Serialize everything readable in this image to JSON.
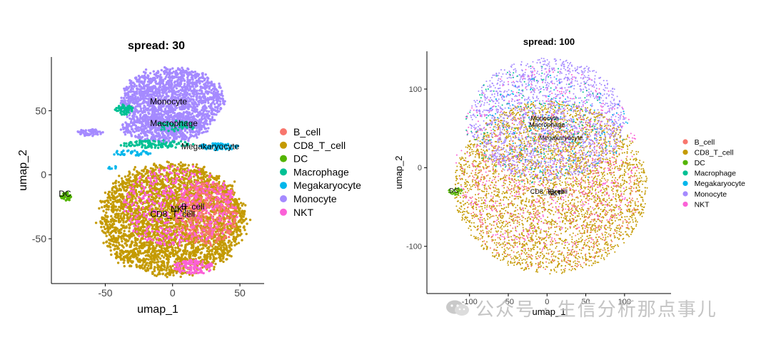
{
  "colors": {
    "B_cell": "#F8766D",
    "CD8_T_cell": "#C49A00",
    "DC": "#53B400",
    "Macrophage": "#00C094",
    "Megakaryocyte": "#00B6EB",
    "Monocyte": "#A58AFF",
    "NKT": "#FB61D7"
  },
  "legend_order": [
    "B_cell",
    "CD8_T_cell",
    "DC",
    "Macrophage",
    "Megakaryocyte",
    "Monocyte",
    "NKT"
  ],
  "watermark": {
    "icon": "wechat-icon",
    "text": "公众号 · 生信分析那点事儿"
  },
  "chart_data": [
    {
      "type": "scatter",
      "title": "spread: 30",
      "xlabel": "umap_1",
      "ylabel": "umap_2",
      "xlim": [
        -90,
        68
      ],
      "ylim": [
        -85,
        92
      ],
      "xticks": [
        -50,
        0,
        50
      ],
      "yticks": [
        -50,
        0,
        50
      ],
      "legend": [
        "B_cell",
        "CD8_T_cell",
        "DC",
        "Macrophage",
        "Megakaryocyte",
        "Monocyte",
        "NKT"
      ],
      "legend_position": "right",
      "grid": false,
      "cluster_labels": [
        {
          "text": "Monocyte",
          "x": -3,
          "y": 55
        },
        {
          "text": "Macrophage",
          "x": 1,
          "y": 38
        },
        {
          "text": "Megakaryocyte",
          "x": 28,
          "y": 20
        },
        {
          "text": "DC",
          "x": -80,
          "y": -17
        },
        {
          "text": "B_cell",
          "x": 15,
          "y": -27
        },
        {
          "text": "NKT",
          "x": 5,
          "y": -29
        },
        {
          "text": "CD8_T_cell",
          "x": 0,
          "y": -33
        }
      ],
      "clusters": [
        {
          "cell_type": "Monocyte",
          "shape": "ellipse",
          "cx": 0,
          "cy": 58,
          "rx": 36,
          "ry": 24,
          "n": 1700
        },
        {
          "cell_type": "Monocyte",
          "shape": "ellipse",
          "cx": -6,
          "cy": 36,
          "rx": 30,
          "ry": 10,
          "n": 500
        },
        {
          "cell_type": "Monocyte",
          "shape": "ellipse",
          "cx": -62,
          "cy": 33,
          "rx": 9,
          "ry": 2.5,
          "n": 60
        },
        {
          "cell_type": "Macrophage",
          "shape": "ellipse",
          "cx": -36,
          "cy": 51,
          "rx": 6,
          "ry": 4,
          "n": 60
        },
        {
          "cell_type": "Macrophage",
          "shape": "ellipse",
          "cx": -12,
          "cy": 24,
          "rx": 26,
          "ry": 3,
          "n": 120
        },
        {
          "cell_type": "Macrophage",
          "shape": "ellipse",
          "cx": 2,
          "cy": 38,
          "rx": 14,
          "ry": 4,
          "n": 50
        },
        {
          "cell_type": "Megakaryocyte",
          "shape": "ellipse",
          "cx": 34,
          "cy": 22,
          "rx": 14,
          "ry": 2.5,
          "n": 80
        },
        {
          "cell_type": "Megakaryocyte",
          "shape": "ellipse",
          "cx": -30,
          "cy": 17,
          "rx": 14,
          "ry": 2,
          "n": 40
        },
        {
          "cell_type": "Megakaryocyte",
          "shape": "ellipse",
          "cx": -45,
          "cy": 6,
          "rx": 3,
          "ry": 2,
          "n": 8
        },
        {
          "cell_type": "DC",
          "shape": "ellipse",
          "cx": -79,
          "cy": -17,
          "rx": 4,
          "ry": 3,
          "n": 40
        },
        {
          "cell_type": "CD8_T_cell",
          "shape": "ellipse",
          "cx": 0,
          "cy": -35,
          "rx": 51,
          "ry": 42,
          "n": 3300
        },
        {
          "cell_type": "B_cell",
          "shape": "ellipse",
          "cx": 25,
          "cy": -30,
          "rx": 22,
          "ry": 24,
          "n": 450
        },
        {
          "cell_type": "NKT",
          "shape": "ellipse",
          "cx": 5,
          "cy": -25,
          "rx": 40,
          "ry": 30,
          "n": 420
        },
        {
          "cell_type": "NKT",
          "shape": "ellipse",
          "cx": 15,
          "cy": -72,
          "rx": 15,
          "ry": 5,
          "n": 120
        }
      ]
    },
    {
      "type": "scatter",
      "title": "spread: 100",
      "xlabel": "umap_1",
      "ylabel": "umap_2",
      "xlim": [
        -155,
        160
      ],
      "ylim": [
        -160,
        148
      ],
      "xticks": [
        -100,
        -50,
        0,
        50,
        100
      ],
      "yticks": [
        -100,
        0,
        100
      ],
      "legend": [
        "B_cell",
        "CD8_T_cell",
        "DC",
        "Macrophage",
        "Megakaryocyte",
        "Monocyte",
        "NKT"
      ],
      "legend_position": "right",
      "grid": false,
      "cluster_labels": [
        {
          "text": "Monocyte",
          "x": -3,
          "y": 60
        },
        {
          "text": "Macrophage",
          "x": 0,
          "y": 52
        },
        {
          "text": "Megakaryocyte",
          "x": 18,
          "y": 35
        },
        {
          "text": "DC",
          "x": -120,
          "y": -32
        },
        {
          "text": "CD8_T_cell",
          "x": 0,
          "y": -33
        },
        {
          "text": "B_cell",
          "x": 15,
          "y": -33
        },
        {
          "text": "NKT",
          "x": 10,
          "y": -35
        }
      ],
      "clusters": [
        {
          "cell_type": "CD8_T_cell",
          "shape": "ellipse",
          "cx": 5,
          "cy": -25,
          "rx": 125,
          "ry": 110,
          "n": 3600
        },
        {
          "cell_type": "B_cell",
          "shape": "ellipse",
          "cx": 5,
          "cy": -30,
          "rx": 115,
          "ry": 100,
          "n": 650
        },
        {
          "cell_type": "NKT",
          "shape": "ellipse",
          "cx": 0,
          "cy": 10,
          "rx": 118,
          "ry": 120,
          "n": 650
        },
        {
          "cell_type": "Monocyte",
          "shape": "ellipse",
          "cx": 0,
          "cy": 62,
          "rx": 100,
          "ry": 78,
          "n": 1700
        },
        {
          "cell_type": "Macrophage",
          "shape": "ellipse",
          "cx": -15,
          "cy": 55,
          "rx": 95,
          "ry": 75,
          "n": 160
        },
        {
          "cell_type": "Megakaryocyte",
          "shape": "ellipse",
          "cx": 10,
          "cy": 50,
          "rx": 95,
          "ry": 70,
          "n": 140
        },
        {
          "cell_type": "DC",
          "shape": "ellipse",
          "cx": -118,
          "cy": -30,
          "rx": 10,
          "ry": 5,
          "n": 55
        }
      ]
    }
  ]
}
